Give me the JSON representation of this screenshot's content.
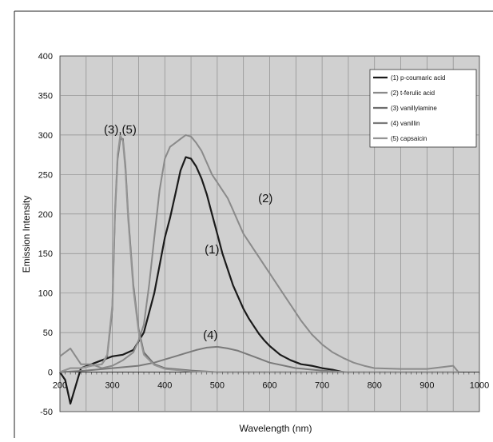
{
  "chart_data": {
    "type": "line",
    "title": "",
    "xlabel": "Wavelength (nm)",
    "ylabel": "Emission Intensity",
    "xlim": [
      200,
      1000
    ],
    "ylim": [
      -50,
      400
    ],
    "x_ticks": [
      200,
      300,
      400,
      500,
      600,
      700,
      800,
      900,
      1000
    ],
    "y_ticks": [
      -50,
      0,
      50,
      100,
      150,
      200,
      250,
      300,
      350,
      400
    ],
    "grid": true,
    "legend_position": "top-right",
    "series": [
      {
        "name": "(1) p-coumaric acid",
        "color": "#1a1a1a",
        "x": [
          200,
          210,
          220,
          240,
          260,
          280,
          300,
          320,
          340,
          360,
          380,
          400,
          410,
          420,
          430,
          440,
          450,
          460,
          470,
          480,
          490,
          500,
          510,
          520,
          530,
          540,
          550,
          560,
          570,
          580,
          590,
          600,
          620,
          640,
          660,
          680,
          700,
          720,
          740
        ],
        "y": [
          0,
          -10,
          -40,
          5,
          10,
          15,
          20,
          22,
          28,
          50,
          100,
          170,
          195,
          225,
          255,
          272,
          270,
          260,
          245,
          225,
          200,
          175,
          150,
          130,
          110,
          95,
          80,
          68,
          58,
          48,
          40,
          33,
          22,
          15,
          10,
          8,
          5,
          3,
          0
        ]
      },
      {
        "name": "(2) t-ferulic acid",
        "color": "#8a8a8a",
        "x": [
          200,
          220,
          240,
          260,
          280,
          300,
          320,
          340,
          350,
          360,
          370,
          380,
          390,
          400,
          410,
          420,
          430,
          440,
          450,
          460,
          470,
          480,
          490,
          500,
          510,
          520,
          530,
          540,
          550,
          560,
          570,
          580,
          590,
          600,
          620,
          640,
          660,
          680,
          700,
          720,
          740,
          760,
          780,
          800,
          850,
          900,
          950,
          960
        ],
        "y": [
          20,
          30,
          10,
          10,
          5,
          8,
          15,
          25,
          40,
          60,
          110,
          170,
          230,
          270,
          285,
          290,
          295,
          300,
          298,
          290,
          280,
          265,
          250,
          240,
          230,
          220,
          205,
          190,
          175,
          165,
          155,
          145,
          135,
          125,
          105,
          85,
          65,
          48,
          35,
          25,
          18,
          12,
          8,
          5,
          4,
          4,
          8,
          0
        ]
      },
      {
        "name": "(3) vanillylamine",
        "color": "#6e6e6e",
        "x": [
          200,
          220,
          240,
          260,
          280,
          290,
          300,
          305,
          310,
          315,
          320,
          325,
          330,
          340,
          350,
          360,
          380,
          400,
          450,
          500,
          600,
          700,
          800,
          900,
          960
        ],
        "y": [
          0,
          5,
          5,
          8,
          10,
          20,
          80,
          200,
          270,
          295,
          295,
          260,
          200,
          110,
          55,
          25,
          10,
          5,
          2,
          0,
          0,
          0,
          0,
          0,
          0
        ]
      },
      {
        "name": "(4) vanillin",
        "color": "#7a7a7a",
        "x": [
          200,
          250,
          300,
          350,
          380,
          400,
          420,
          440,
          460,
          480,
          500,
          520,
          540,
          560,
          580,
          600,
          650,
          700,
          750,
          800,
          900,
          960
        ],
        "y": [
          0,
          2,
          5,
          8,
          12,
          16,
          20,
          24,
          28,
          31,
          32,
          30,
          27,
          22,
          17,
          12,
          5,
          2,
          0,
          0,
          0,
          0
        ]
      },
      {
        "name": "(5) capsaicin",
        "color": "#959595",
        "x": [
          200,
          220,
          240,
          260,
          280,
          290,
          300,
          305,
          310,
          315,
          320,
          325,
          330,
          340,
          350,
          360,
          380,
          400,
          450,
          500,
          600,
          700,
          800,
          900,
          960
        ],
        "y": [
          0,
          5,
          5,
          8,
          10,
          22,
          85,
          205,
          275,
          300,
          292,
          255,
          195,
          105,
          52,
          22,
          9,
          4,
          1,
          0,
          0,
          0,
          0,
          0,
          0
        ]
      }
    ],
    "annotations": [
      {
        "text": "(3),(5)",
        "x": 315,
        "y": 302
      },
      {
        "text": "(2)",
        "x": 592,
        "y": 215
      },
      {
        "text": "(1)",
        "x": 490,
        "y": 150
      },
      {
        "text": "(4)",
        "x": 487,
        "y": 42
      }
    ]
  }
}
